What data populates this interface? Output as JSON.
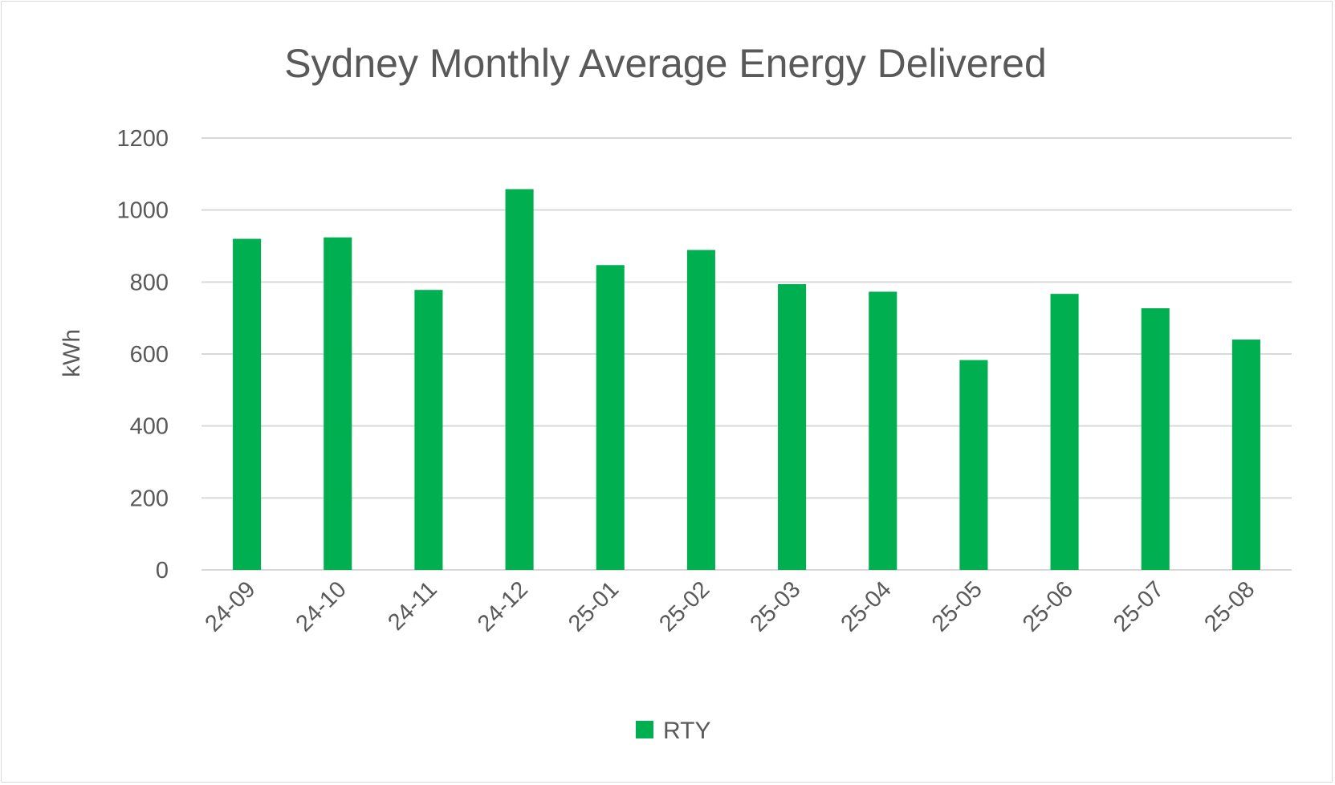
{
  "chart_data": {
    "type": "bar",
    "title": "Sydney Monthly Average Energy Delivered",
    "xlabel": "",
    "ylabel": "kWh",
    "categories": [
      "24-09",
      "24-10",
      "24-11",
      "24-12",
      "25-01",
      "25-02",
      "25-03",
      "25-04",
      "25-05",
      "25-06",
      "25-07",
      "25-08"
    ],
    "series": [
      {
        "name": "RTY",
        "color": "#00b050",
        "values": [
          920,
          924,
          778,
          1058,
          847,
          889,
          794,
          773,
          583,
          767,
          727,
          640
        ]
      }
    ],
    "ylim": [
      0,
      1200
    ],
    "yticks": [
      "0",
      "200",
      "400",
      "600",
      "800",
      "1000",
      "1200"
    ],
    "grid": true,
    "legend": "bottom"
  }
}
